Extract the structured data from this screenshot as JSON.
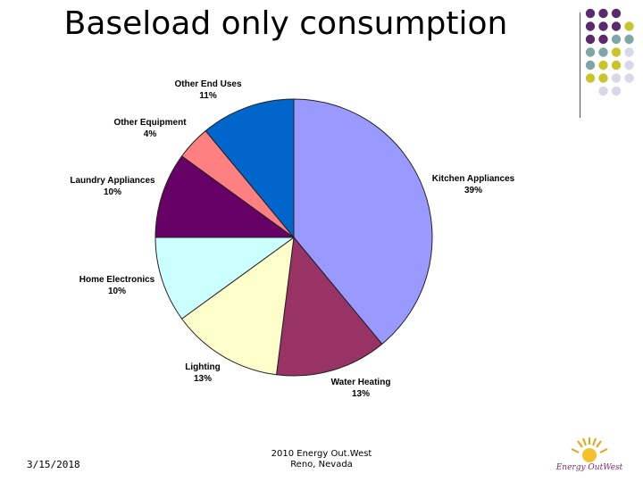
{
  "slide": {
    "title": "Baseload only consumption",
    "date": "3/15/2018",
    "org_line1": "2010 Energy Out.West",
    "org_line2": "Reno, Nevada",
    "logo_text": "Energy OutWest"
  },
  "colors": {
    "dot_purple": "#5a2a6e",
    "dot_teal": "#7ea6a8",
    "dot_yellow": "#c9c42b",
    "dot_lavender": "#d8d8e8"
  },
  "chart_data": {
    "type": "pie",
    "title": "",
    "start_angle_deg": 0,
    "direction": "clockwise",
    "slices": [
      {
        "label": "Kitchen Appliances",
        "value": 39,
        "display": "39%",
        "color": "#9999ff"
      },
      {
        "label": "Water Heating",
        "value": 13,
        "display": "13%",
        "color": "#993366"
      },
      {
        "label": "Lighting",
        "value": 13,
        "display": "13%",
        "color": "#ffffcc"
      },
      {
        "label": "Home Electronics",
        "value": 10,
        "display": "10%",
        "color": "#ccffff"
      },
      {
        "label": "Laundry Appliances",
        "value": 10,
        "display": "10%",
        "color": "#660066"
      },
      {
        "label": "Other Equipment",
        "value": 4,
        "display": "4%",
        "color": "#ff8080"
      },
      {
        "label": "Other End Uses",
        "value": 11,
        "display": "11%",
        "color": "#0066cc"
      }
    ]
  }
}
